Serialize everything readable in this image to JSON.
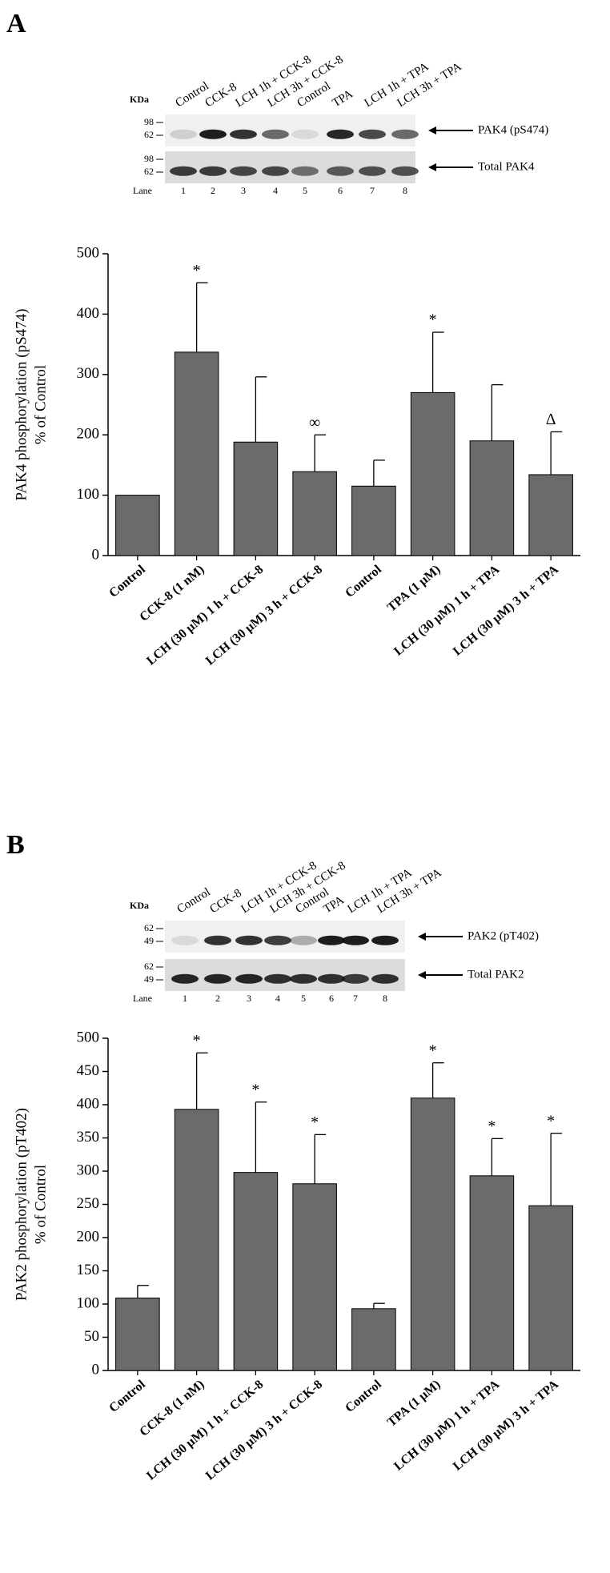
{
  "panel_labels": [
    "A",
    "B"
  ],
  "blots": [
    {
      "lane_labels": [
        "Control",
        "CCK-8",
        "LCH 1h + CCK-8",
        "LCH 3h + CCK-8",
        "Control",
        "TPA",
        "LCH 1h + TPA",
        "LCH 3h + TPA"
      ],
      "kda_label": "KDa",
      "rows": [
        {
          "markers": [
            "98",
            "62"
          ],
          "label": "PAK4 (pS474)"
        },
        {
          "markers": [
            "98",
            "62"
          ],
          "label": "Total PAK4"
        }
      ],
      "lane_title": "Lane",
      "lane_numbers": [
        "1",
        "2",
        "3",
        "4",
        "5",
        "6",
        "7",
        "8"
      ]
    },
    {
      "lane_labels": [
        "Control",
        "CCK-8",
        "LCH 1h + CCK-8",
        "LCH 3h + CCK-8",
        "Control",
        "TPA",
        "LCH 1h + TPA",
        "LCH 3h + TPA"
      ],
      "kda_label": "KDa",
      "rows": [
        {
          "markers": [
            "62",
            "49"
          ],
          "label": "PAK2 (pT402)"
        },
        {
          "markers": [
            "62",
            "49"
          ],
          "label": "Total PAK2"
        }
      ],
      "lane_title": "Lane",
      "lane_numbers": [
        "1",
        "2",
        "3",
        "4",
        "5",
        "6",
        "7",
        "8"
      ]
    }
  ],
  "chart_data": [
    {
      "type": "bar",
      "ylabel": [
        "PAK4 phosphorylation (pS474)",
        "% of Control"
      ],
      "categories": [
        "Control",
        "CCK-8 (1 nM)",
        "LCH (30 μM) 1 h + CCK-8",
        "LCH (30 μM) 3 h + CCK-8",
        "Control",
        "TPA (1 μM)",
        "LCH (30 μM) 1 h + TPA",
        "LCH (30 μM) 3 h + TPA"
      ],
      "values": [
        100,
        337,
        188,
        139,
        115,
        270,
        190,
        134
      ],
      "errors": [
        null,
        115,
        108,
        61,
        43,
        100,
        93,
        71
      ],
      "annotations": [
        null,
        "*",
        null,
        "∞",
        null,
        "*",
        null,
        "Δ"
      ],
      "color": "#6b6b6b",
      "ylim": [
        0,
        500
      ],
      "yticks": [
        0,
        100,
        200,
        300,
        400,
        500
      ]
    },
    {
      "type": "bar",
      "ylabel": [
        "PAK2 phosphorylation (pT402)",
        "% of Control"
      ],
      "categories": [
        "Control",
        "CCK-8 (1 nM)",
        "LCH (30 μM) 1 h + CCK-8",
        "LCH (30 μM) 3 h + CCK-8",
        "Control",
        "TPA (1 μM)",
        "LCH (30 μM) 1 h + TPA",
        "LCH (30 μM) 3 h + TPA"
      ],
      "values": [
        109,
        393,
        298,
        281,
        93,
        410,
        293,
        248
      ],
      "errors": [
        19,
        85,
        106,
        74,
        8,
        53,
        56,
        109
      ],
      "annotations": [
        null,
        "*",
        "*",
        "*",
        null,
        "*",
        "*",
        "*"
      ],
      "color": "#6b6b6b",
      "ylim": [
        0,
        500
      ],
      "yticks": [
        0,
        50,
        100,
        150,
        200,
        250,
        300,
        350,
        400,
        450,
        500
      ]
    }
  ]
}
